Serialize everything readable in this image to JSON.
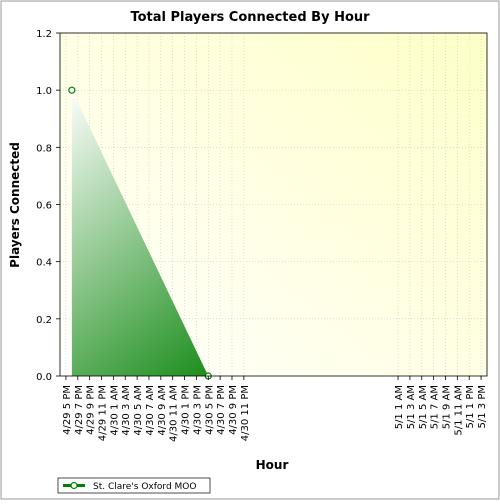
{
  "chart_data": {
    "type": "area",
    "title": "Total Players Connected By Hour",
    "xlabel": "Hour",
    "ylabel": "Players Connected",
    "ylim": [
      0,
      1.2
    ],
    "yticks": [
      "0.0",
      "0.2",
      "0.4",
      "0.6",
      "0.8",
      "1.0",
      "1.2"
    ],
    "x_tick_labels": [
      "4/29 5 PM",
      "4/29 7 PM",
      "4/29 9 PM",
      "4/29 11 PM",
      "4/30 1 AM",
      "4/30 3 AM",
      "4/30 5 AM",
      "4/30 7 AM",
      "4/30 9 AM",
      "4/30 11 AM",
      "4/30 1 PM",
      "4/30 3 PM",
      "4/30 5 PM",
      "4/30 7 PM",
      "4/30 9 PM",
      "4/30 11 PM",
      "5/1 1 AM",
      "5/1 3 AM",
      "5/1 5 AM",
      "5/1 7 AM",
      "5/1 9 AM",
      "5/1 11 AM",
      "5/1 1 PM",
      "5/1 3 PM"
    ],
    "grid": true,
    "legend_position": "bottom-left",
    "series": [
      {
        "name": "St. Clare's Oxford MOO",
        "color": "#008000",
        "x": [
          "4/29 6 PM",
          "4/30 5 PM"
        ],
        "values": [
          1.0,
          0.0
        ]
      }
    ]
  }
}
